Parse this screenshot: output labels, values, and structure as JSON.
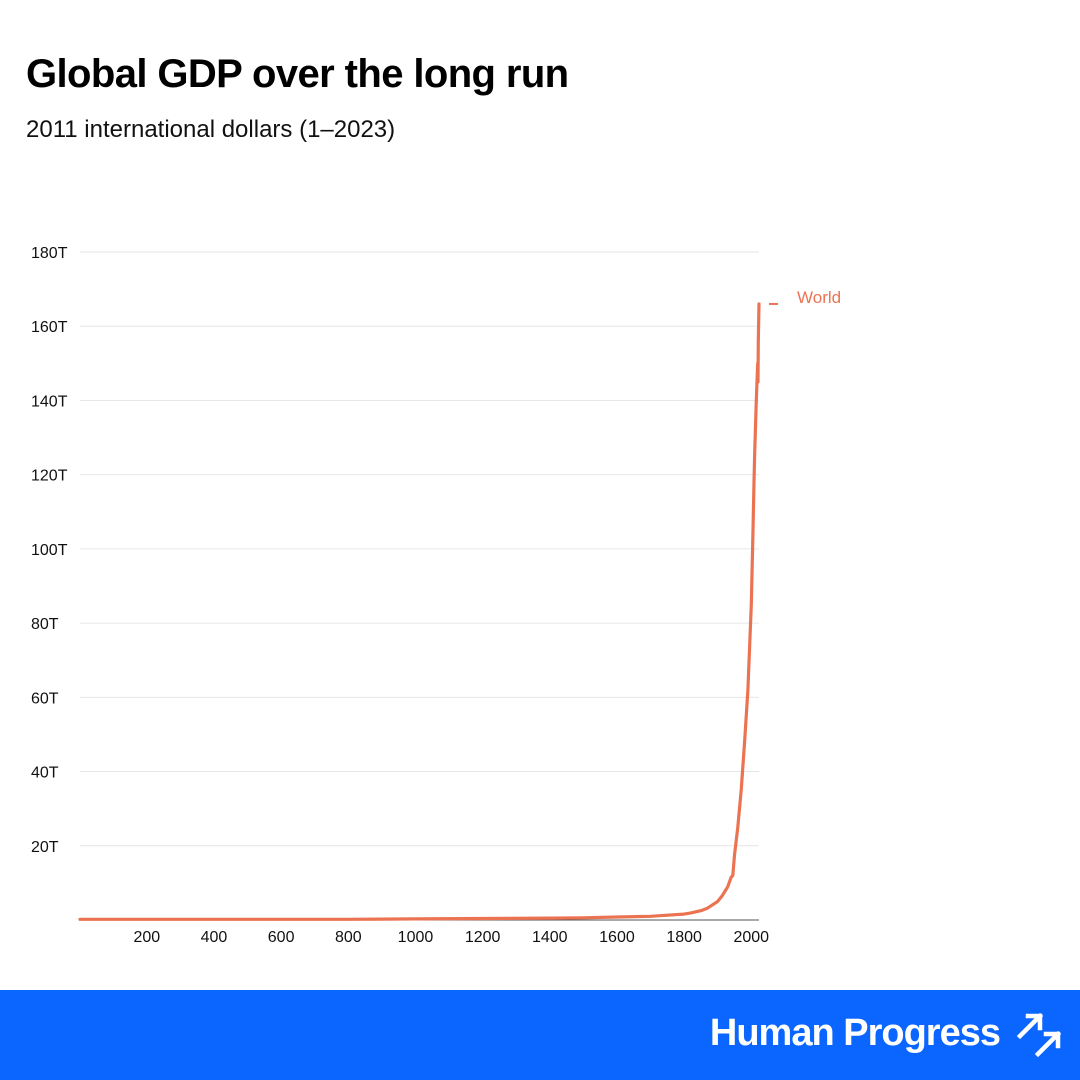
{
  "chart_data": {
    "type": "line",
    "title": "Global GDP over the long run",
    "subtitle": "2011 international dollars (1–2023)",
    "xlabel": "",
    "ylabel": "",
    "xlim": [
      1,
      2023
    ],
    "ylim": [
      0,
      180
    ],
    "y_unit": "trillion 2011 int-$",
    "x_ticks": [
      {
        "value": 200,
        "label": "200"
      },
      {
        "value": 400,
        "label": "400"
      },
      {
        "value": 600,
        "label": "600"
      },
      {
        "value": 800,
        "label": "800"
      },
      {
        "value": 1000,
        "label": "1000"
      },
      {
        "value": 1200,
        "label": "1200"
      },
      {
        "value": 1400,
        "label": "1400"
      },
      {
        "value": 1600,
        "label": "1600"
      },
      {
        "value": 1800,
        "label": "1800"
      },
      {
        "value": 2000,
        "label": "2000"
      }
    ],
    "y_ticks": [
      {
        "value": 20,
        "label": "20T"
      },
      {
        "value": 40,
        "label": "40T"
      },
      {
        "value": 60,
        "label": "60T"
      },
      {
        "value": 80,
        "label": "80T"
      },
      {
        "value": 100,
        "label": "100T"
      },
      {
        "value": 120,
        "label": "120T"
      },
      {
        "value": 140,
        "label": "140T"
      },
      {
        "value": 160,
        "label": "160T"
      },
      {
        "value": 180,
        "label": "180T"
      }
    ],
    "grid": true,
    "legend": "right",
    "series": [
      {
        "name": "World",
        "color": "#ec7352",
        "x": [
          1,
          200,
          400,
          600,
          800,
          1000,
          1200,
          1400,
          1500,
          1600,
          1700,
          1750,
          1800,
          1820,
          1850,
          1870,
          1900,
          1913,
          1930,
          1940,
          1945,
          1950,
          1960,
          1970,
          1980,
          1990,
          2000,
          2005,
          2008,
          2010,
          2015,
          2019,
          2020,
          2021,
          2023
        ],
        "values": [
          0.2,
          0.2,
          0.2,
          0.2,
          0.2,
          0.3,
          0.4,
          0.5,
          0.6,
          0.8,
          1.0,
          1.3,
          1.6,
          1.9,
          2.5,
          3.2,
          5.0,
          6.5,
          9.0,
          11.5,
          12.0,
          17.5,
          25.0,
          35.0,
          48.0,
          62.0,
          85.0,
          105.0,
          118.0,
          125.0,
          140.0,
          150.0,
          145.0,
          156.0,
          166.0
        ]
      }
    ]
  },
  "footer": {
    "brand_name": "Human Progress",
    "brand_color": "#0a66ff",
    "brand_icon": "double-arrow-up-right-icon"
  }
}
